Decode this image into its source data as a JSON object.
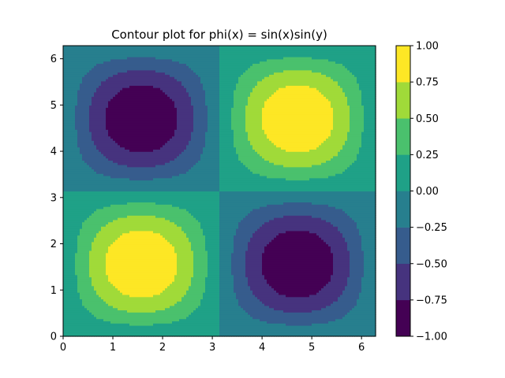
{
  "chart_data": {
    "type": "contour",
    "title": "Contour plot for phi(x) = sin(x)sin(y)",
    "function": "sin(x)sin(y)",
    "xlabel": "",
    "ylabel": "",
    "xlim": [
      0,
      6.283
    ],
    "ylim": [
      0,
      6.283
    ],
    "x_ticks": [
      0,
      1,
      2,
      3,
      4,
      5,
      6
    ],
    "y_ticks": [
      0,
      1,
      2,
      3,
      4,
      5,
      6
    ],
    "levels": [
      -1.0,
      -0.75,
      -0.5,
      -0.25,
      0.0,
      0.25,
      0.5,
      0.75,
      1.0
    ],
    "level_labels": [
      "−1.00",
      "−0.75",
      "−0.50",
      "−0.25",
      "0.00",
      "0.25",
      "0.50",
      "0.75",
      "1.00"
    ],
    "band_colors": [
      "#440154",
      "#46337e",
      "#365c8d",
      "#277f8e",
      "#1fa187",
      "#4ac16d",
      "#a0da39",
      "#fde725"
    ],
    "colormap": "viridis",
    "grid": false,
    "colorbar": "right"
  }
}
